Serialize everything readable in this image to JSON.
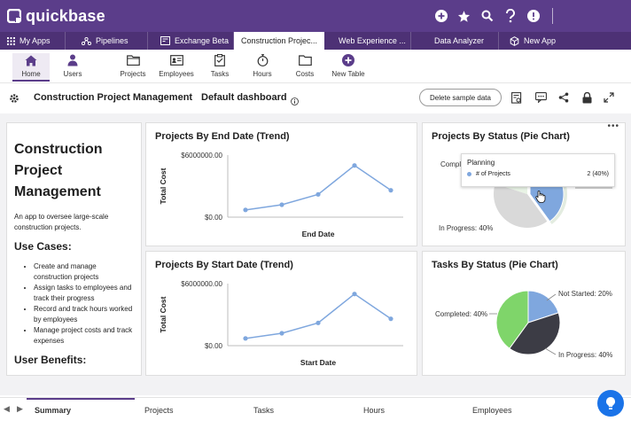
{
  "brand": {
    "name": "quickbase"
  },
  "colors": {
    "brand": "#5b3d8a",
    "tabbar": "#4d3175",
    "line": "#7fa7de",
    "pie_blue": "#7fa7de",
    "pie_green": "#7fd56a",
    "pie_dark": "#3c3c45",
    "pie_gray": "#d9d9d9"
  },
  "top_icons": [
    "plus-icon",
    "star-icon",
    "search-icon",
    "help-icon",
    "alert-icon"
  ],
  "app_tabs": [
    {
      "label": "My Apps",
      "icon": "grid-icon",
      "active": false
    },
    {
      "label": "Pipelines",
      "icon": "pipelines-icon",
      "active": false
    },
    {
      "label": "Exchange Beta",
      "icon": "exchange-icon",
      "active": false
    },
    {
      "label": "Construction Projec...",
      "icon": "",
      "active": true
    },
    {
      "label": "Web Experience ...",
      "icon": "",
      "active": false
    },
    {
      "label": "Data Analyzer",
      "icon": "",
      "active": false
    },
    {
      "label": "New App",
      "icon": "cube-icon",
      "active": false
    }
  ],
  "nav": {
    "items": [
      {
        "label": "Home",
        "icon": "home-icon",
        "active": true
      },
      {
        "label": "Users",
        "icon": "user-icon",
        "active": false
      },
      {
        "label": "Projects",
        "icon": "folder-icon",
        "active": false
      },
      {
        "label": "Employees",
        "icon": "id-card-icon",
        "active": false
      },
      {
        "label": "Tasks",
        "icon": "clipboard-icon",
        "active": false
      },
      {
        "label": "Hours",
        "icon": "stopwatch-icon",
        "active": false
      },
      {
        "label": "Costs",
        "icon": "folder-icon",
        "active": false
      },
      {
        "label": "New Table",
        "icon": "plus-circle-icon",
        "active": false
      }
    ]
  },
  "dashboard": {
    "app_name": "Construction Project Management",
    "name": "Default dashboard",
    "delete_button": "Delete sample data"
  },
  "intro": {
    "title": "Construction Project Management",
    "description": "An app to oversee large-scale construction projects.",
    "use_cases_heading": "Use Cases:",
    "use_cases": [
      "Create and manage construction projects",
      "Assign tasks to employees and track their progress",
      "Record and track hours worked by employees",
      "Manage project costs and track expenses"
    ],
    "benefits_heading": "User Benefits:"
  },
  "charts": {
    "end_date": {
      "title": "Projects By End Date (Trend)"
    },
    "start_date": {
      "title": "Projects By Start Date (Trend)"
    },
    "status": {
      "title": "Projects By Status (Pie Chart)",
      "tooltip": {
        "title": "Planning",
        "series": "# of Projects",
        "value": "2 (40%)"
      }
    },
    "tasks": {
      "title": "Tasks By Status (Pie Chart)"
    }
  },
  "chart_data": [
    {
      "type": "line",
      "title": "Projects By End Date (Trend)",
      "xlabel": "End Date",
      "ylabel": "Total Cost",
      "y_ticks": [
        "$6000000.00",
        "$0.00"
      ],
      "ylim": [
        0,
        6000000
      ],
      "y": [
        700000,
        1200000,
        2200000,
        5000000,
        2600000
      ]
    },
    {
      "type": "line",
      "title": "Projects By Start Date (Trend)",
      "xlabel": "Start Date",
      "ylabel": "Total Cost",
      "y_ticks": [
        "$6000000.00",
        "$0.00"
      ],
      "ylim": [
        0,
        6000000
      ],
      "y": [
        700000,
        1200000,
        2200000,
        5000000,
        2600000
      ]
    },
    {
      "type": "pie",
      "title": "Projects By Status (Pie Chart)",
      "slices": [
        {
          "label": "Planning",
          "value": 40,
          "color": "#7fa7de"
        },
        {
          "label": "In Progress: 40%",
          "value": 40,
          "color": "#d9d9d9"
        },
        {
          "label": "Comple",
          "value": 20,
          "color": "#e8f3e5"
        }
      ]
    },
    {
      "type": "pie",
      "title": "Tasks By Status (Pie Chart)",
      "slices": [
        {
          "label": "Not Started: 20%",
          "value": 20,
          "color": "#7fa7de"
        },
        {
          "label": "In Progress: 40%",
          "value": 40,
          "color": "#3c3c45"
        },
        {
          "label": "Completed: 40%",
          "value": 40,
          "color": "#7fd56a"
        }
      ]
    }
  ],
  "bottom_tabs": [
    {
      "label": "Summary",
      "active": true
    },
    {
      "label": "Projects",
      "active": false
    },
    {
      "label": "Tasks",
      "active": false
    },
    {
      "label": "Hours",
      "active": false
    },
    {
      "label": "Employees",
      "active": false
    }
  ]
}
